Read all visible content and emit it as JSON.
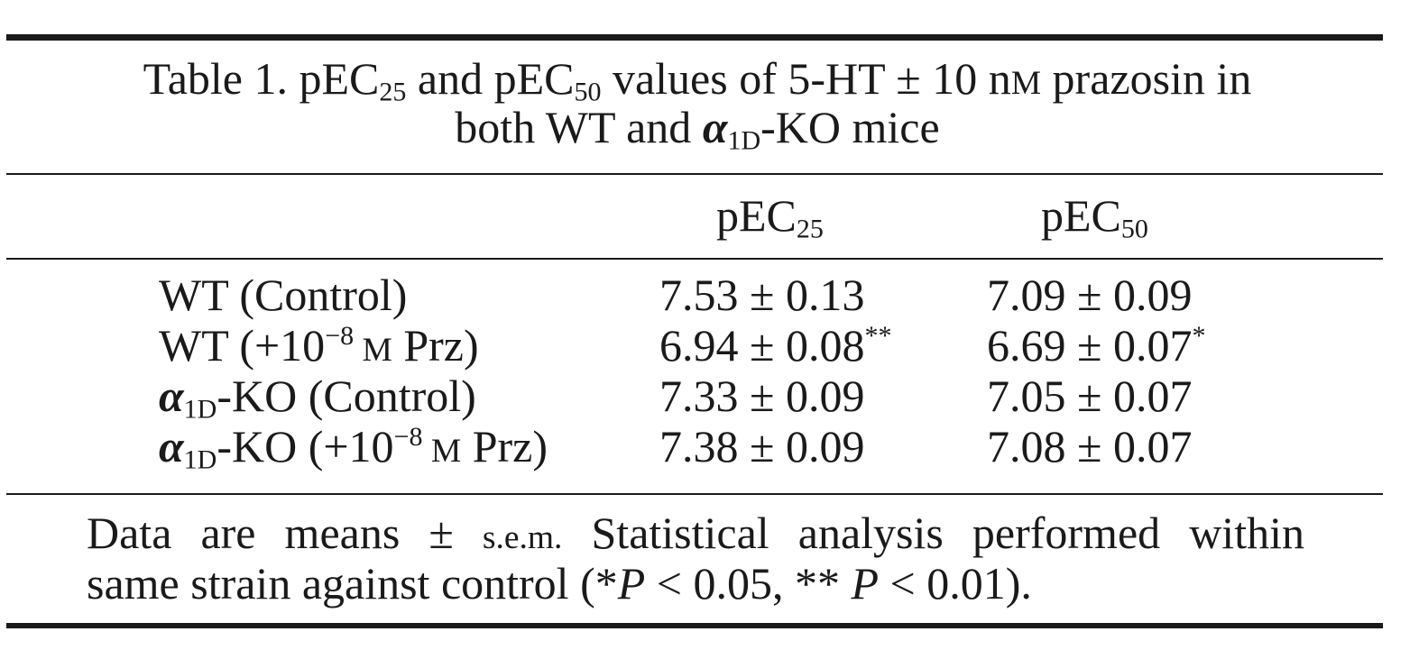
{
  "caption": {
    "line1_a": "Table 1. pEC",
    "line1_sub1": "25",
    "line1_b": " and pEC",
    "line1_sub2": "50",
    "line1_c": " values of 5-HT ± 10 n",
    "line1_unit": "M",
    "line1_d": " prazosin in",
    "line2_a": "both WT and ",
    "line2_greek": "α",
    "line2_sub": "1D",
    "line2_b": "-KO mice"
  },
  "columns": {
    "c1_a": "pEC",
    "c1_sub": "25",
    "c2_a": "pEC",
    "c2_sub": "50"
  },
  "rows": [
    {
      "label_pre": "",
      "label_sub": "",
      "label_main": "WT (Control)",
      "label_sup": "",
      "label_unit": "",
      "label_end": "",
      "pec25": "7.53 ± 0.13",
      "pec25_mark": "",
      "pec50": "7.09 ± 0.09",
      "pec50_mark": ""
    },
    {
      "label_pre": "",
      "label_sub": "",
      "label_main": "WT (+10",
      "label_sup": "−8",
      "label_unit": " M",
      "label_end": " Prz)",
      "pec25": "6.94 ± 0.08",
      "pec25_mark": "**",
      "pec50": "6.69 ± 0.07",
      "pec50_mark": "*"
    },
    {
      "label_pre": "α",
      "label_sub": "1D",
      "label_main": "-KO (Control)",
      "label_sup": "",
      "label_unit": "",
      "label_end": "",
      "pec25": "7.33 ± 0.09",
      "pec25_mark": "",
      "pec50": "7.05 ± 0.07",
      "pec50_mark": ""
    },
    {
      "label_pre": "α",
      "label_sub": "1D",
      "label_main": "-KO (+10",
      "label_sup": "−8",
      "label_unit": " M",
      "label_end": " Prz)",
      "pec25": "7.38 ± 0.09",
      "pec25_mark": "",
      "pec50": "7.08 ± 0.07",
      "pec50_mark": ""
    }
  ],
  "note": {
    "line1_a": "Data are means ± ",
    "line1_sem": "s.e.m.",
    "line1_b": " Statistical analysis performed within",
    "line2_a": "same strain against control (*",
    "line2_p1": "P",
    "line2_b": " < 0.05, ** ",
    "line2_p2": "P",
    "line2_c": " < 0.01)."
  }
}
